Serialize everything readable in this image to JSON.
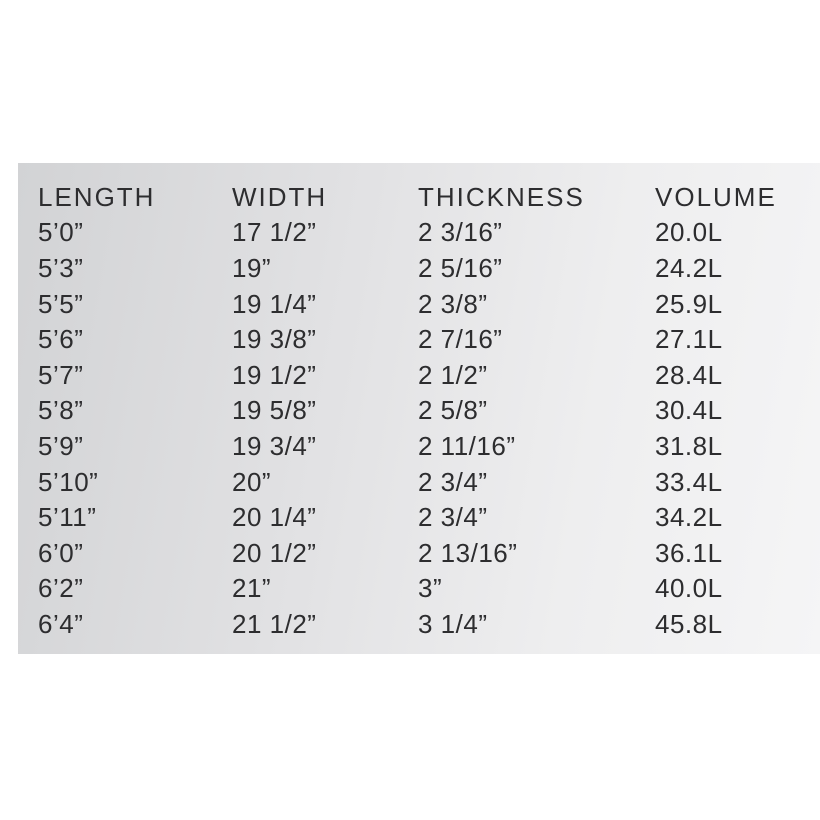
{
  "page": {
    "background_color": "#ffffff",
    "card_gradient_left": "#d2d3d5",
    "card_gradient_right": "#f5f5f6",
    "text_color": "#2d2d2f"
  },
  "chart_data": {
    "type": "table",
    "title": "",
    "columns": [
      "LENGTH",
      "WIDTH",
      "THICKNESS",
      "VOLUME"
    ],
    "rows": [
      [
        "5’0”",
        "17 1/2”",
        "2 3/16”",
        "20.0L"
      ],
      [
        "5’3”",
        "19”",
        "2 5/16”",
        "24.2L"
      ],
      [
        "5’5”",
        "19 1/4”",
        "2 3/8”",
        "25.9L"
      ],
      [
        "5’6”",
        "19 3/8”",
        "2 7/16”",
        "27.1L"
      ],
      [
        "5’7”",
        "19 1/2”",
        "2 1/2”",
        "28.4L"
      ],
      [
        "5’8”",
        "19 5/8”",
        "2 5/8”",
        "30.4L"
      ],
      [
        "5’9”",
        "19 3/4”",
        "2 11/16”",
        "31.8L"
      ],
      [
        "5’10”",
        "20”",
        "2 3/4”",
        "33.4L"
      ],
      [
        "5’11”",
        "20 1/4”",
        "2 3/4”",
        "34.2L"
      ],
      [
        "6’0”",
        "20 1/2”",
        "2 13/16”",
        "36.1L"
      ],
      [
        "6’2”",
        "21”",
        "3”",
        "40.0L"
      ],
      [
        "6’4”",
        "21 1/2”",
        "3 1/4”",
        "45.8L"
      ]
    ]
  }
}
